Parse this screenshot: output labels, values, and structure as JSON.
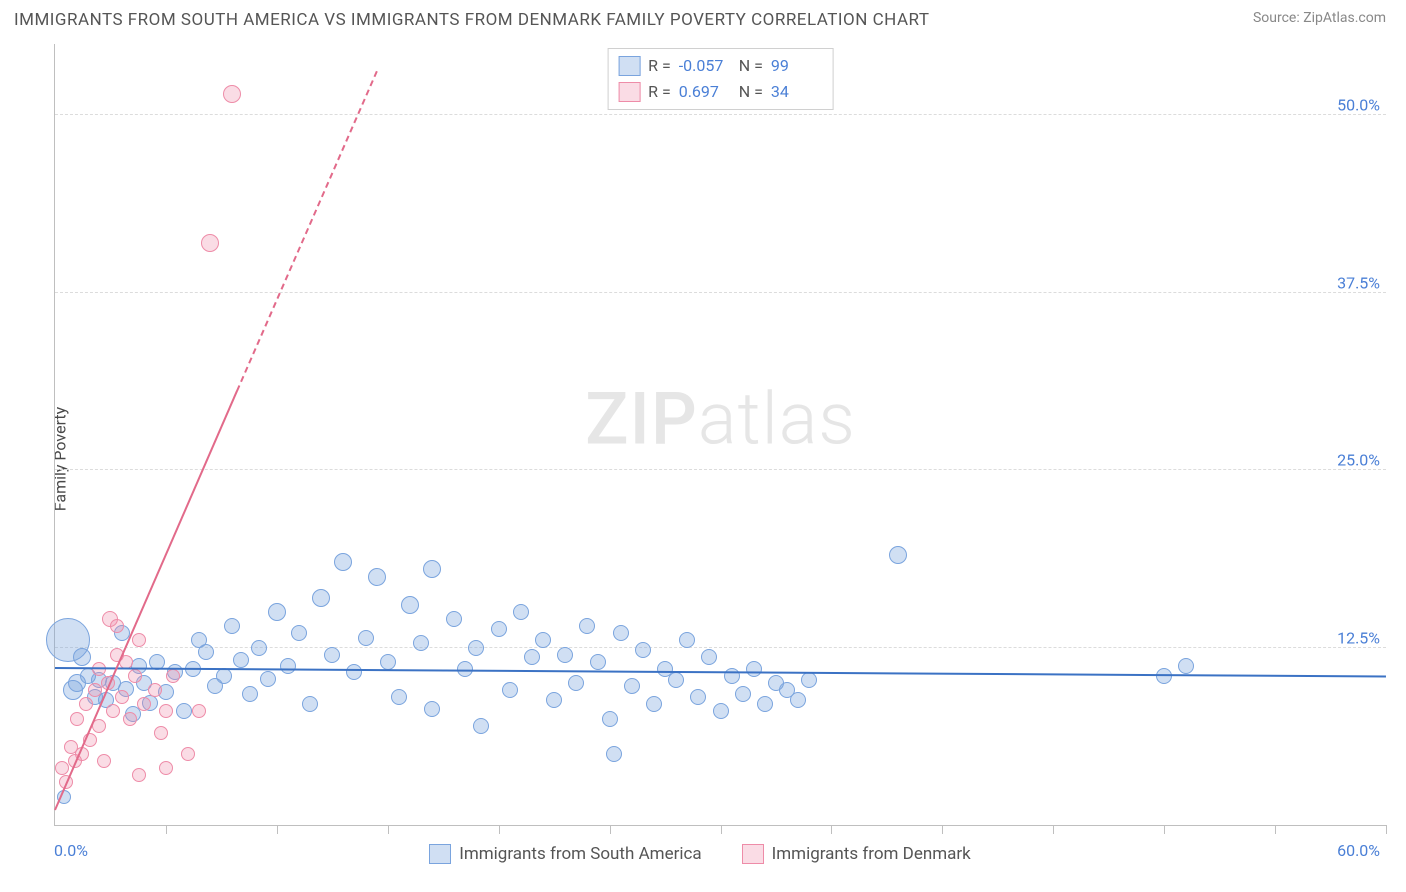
{
  "header": {
    "title": "IMMIGRANTS FROM SOUTH AMERICA VS IMMIGRANTS FROM DENMARK FAMILY POVERTY CORRELATION CHART",
    "source_label": "Source:",
    "source_name": "ZipAtlas.com"
  },
  "watermark": {
    "zip": "ZIP",
    "atlas": "atlas"
  },
  "chart": {
    "type": "scatter",
    "ylabel": "Family Poverty",
    "xlim": [
      0,
      60
    ],
    "ylim": [
      0,
      55
    ],
    "x_axis_labels": {
      "min": "0.0%",
      "max": "60.0%"
    },
    "y_ticks": [
      {
        "v": 12.5,
        "label": "12.5%"
      },
      {
        "v": 25.0,
        "label": "25.0%"
      },
      {
        "v": 37.5,
        "label": "37.5%"
      },
      {
        "v": 50.0,
        "label": "50.0%"
      }
    ],
    "x_minor_ticks": [
      5,
      10,
      15,
      20,
      25,
      30,
      35,
      40,
      45,
      50,
      55,
      60
    ],
    "background_color": "#ffffff",
    "grid_color": "#dcdcdc",
    "axis_color": "#bfbfbf",
    "series": [
      {
        "name": "Immigrants from South America",
        "color_fill": "rgba(120,164,222,0.35)",
        "color_stroke": "#7aa4de",
        "trend_color": "#3b72c4",
        "trend": {
          "x1": 0,
          "y1": 11.0,
          "x2": 60,
          "y2": 10.4,
          "dashed": false
        },
        "R": "-0.057",
        "N": "99",
        "points": [
          [
            0.4,
            2.0,
            7
          ],
          [
            0.6,
            13.0,
            22
          ],
          [
            0.8,
            9.5,
            10
          ],
          [
            1.0,
            10.0,
            9
          ],
          [
            1.2,
            11.8,
            9
          ],
          [
            1.5,
            10.5,
            8
          ],
          [
            1.8,
            9.0,
            8
          ],
          [
            2.0,
            10.2,
            8
          ],
          [
            2.3,
            8.8,
            8
          ],
          [
            2.6,
            10.0,
            8
          ],
          [
            3.0,
            13.5,
            8
          ],
          [
            3.2,
            9.6,
            8
          ],
          [
            3.5,
            7.8,
            8
          ],
          [
            3.8,
            11.2,
            8
          ],
          [
            4.0,
            10.0,
            8
          ],
          [
            4.3,
            8.6,
            8
          ],
          [
            4.6,
            11.5,
            8
          ],
          [
            5.0,
            9.4,
            8
          ],
          [
            5.4,
            10.8,
            8
          ],
          [
            5.8,
            8.0,
            8
          ],
          [
            6.2,
            11.0,
            8
          ],
          [
            6.5,
            13.0,
            8
          ],
          [
            6.8,
            12.2,
            8
          ],
          [
            7.2,
            9.8,
            8
          ],
          [
            7.6,
            10.5,
            8
          ],
          [
            8.0,
            14.0,
            8
          ],
          [
            8.4,
            11.6,
            8
          ],
          [
            8.8,
            9.2,
            8
          ],
          [
            9.2,
            12.5,
            8
          ],
          [
            9.6,
            10.3,
            8
          ],
          [
            10.0,
            15.0,
            9
          ],
          [
            10.5,
            11.2,
            8
          ],
          [
            11.0,
            13.5,
            8
          ],
          [
            11.5,
            8.5,
            8
          ],
          [
            12.0,
            16.0,
            9
          ],
          [
            12.5,
            12.0,
            8
          ],
          [
            13.0,
            18.5,
            9
          ],
          [
            13.5,
            10.8,
            8
          ],
          [
            14.0,
            13.2,
            8
          ],
          [
            14.5,
            17.5,
            9
          ],
          [
            15.0,
            11.5,
            8
          ],
          [
            15.5,
            9.0,
            8
          ],
          [
            16.0,
            15.5,
            9
          ],
          [
            16.5,
            12.8,
            8
          ],
          [
            17.0,
            8.2,
            8
          ],
          [
            17.0,
            18.0,
            9
          ],
          [
            18.0,
            14.5,
            8
          ],
          [
            18.5,
            11.0,
            8
          ],
          [
            19.0,
            12.5,
            8
          ],
          [
            19.2,
            7.0,
            8
          ],
          [
            20.0,
            13.8,
            8
          ],
          [
            20.5,
            9.5,
            8
          ],
          [
            21.0,
            15.0,
            8
          ],
          [
            21.5,
            11.8,
            8
          ],
          [
            22.0,
            13.0,
            8
          ],
          [
            22.5,
            8.8,
            8
          ],
          [
            23.0,
            12.0,
            8
          ],
          [
            23.5,
            10.0,
            8
          ],
          [
            24.0,
            14.0,
            8
          ],
          [
            24.5,
            11.5,
            8
          ],
          [
            25.0,
            7.5,
            8
          ],
          [
            25.2,
            5.0,
            8
          ],
          [
            25.5,
            13.5,
            8
          ],
          [
            26.0,
            9.8,
            8
          ],
          [
            26.5,
            12.3,
            8
          ],
          [
            27.0,
            8.5,
            8
          ],
          [
            27.5,
            11.0,
            8
          ],
          [
            28.0,
            10.2,
            8
          ],
          [
            28.5,
            13.0,
            8
          ],
          [
            29.0,
            9.0,
            8
          ],
          [
            29.5,
            11.8,
            8
          ],
          [
            30.0,
            8.0,
            8
          ],
          [
            30.5,
            10.5,
            8
          ],
          [
            31.0,
            9.2,
            8
          ],
          [
            31.5,
            11.0,
            8
          ],
          [
            32.0,
            8.5,
            8
          ],
          [
            32.5,
            10.0,
            8
          ],
          [
            33.0,
            9.5,
            8
          ],
          [
            33.5,
            8.8,
            8
          ],
          [
            34.0,
            10.2,
            8
          ],
          [
            38.0,
            19.0,
            9
          ],
          [
            50.0,
            10.5,
            8
          ],
          [
            51.0,
            11.2,
            8
          ]
        ]
      },
      {
        "name": "Immigrants from Denmark",
        "color_fill": "rgba(238,140,168,0.30)",
        "color_stroke": "#ee8ca8",
        "trend_color": "#e26a8a",
        "trend": {
          "x1": 0,
          "y1": 1.0,
          "x2": 8.2,
          "y2": 30.5,
          "dashed_ext": {
            "x2": 14.5,
            "y2": 53.0
          }
        },
        "R": "0.697",
        "N": "34",
        "points": [
          [
            0.3,
            4.0,
            7
          ],
          [
            0.5,
            3.0,
            7
          ],
          [
            0.7,
            5.5,
            7
          ],
          [
            0.9,
            4.5,
            7
          ],
          [
            1.0,
            7.5,
            7
          ],
          [
            1.2,
            5.0,
            7
          ],
          [
            1.4,
            8.5,
            7
          ],
          [
            1.6,
            6.0,
            7
          ],
          [
            1.8,
            9.5,
            7
          ],
          [
            2.0,
            7.0,
            7
          ],
          [
            2.0,
            11.0,
            7
          ],
          [
            2.2,
            4.5,
            7
          ],
          [
            2.4,
            10.0,
            7
          ],
          [
            2.5,
            14.5,
            8
          ],
          [
            2.6,
            8.0,
            7
          ],
          [
            2.8,
            12.0,
            7
          ],
          [
            2.8,
            14.0,
            7
          ],
          [
            3.0,
            9.0,
            7
          ],
          [
            3.2,
            11.5,
            7
          ],
          [
            3.4,
            7.5,
            7
          ],
          [
            3.6,
            10.5,
            7
          ],
          [
            3.8,
            3.5,
            7
          ],
          [
            3.8,
            13.0,
            7
          ],
          [
            4.0,
            8.5,
            7
          ],
          [
            4.5,
            9.5,
            7
          ],
          [
            4.8,
            6.5,
            7
          ],
          [
            5.0,
            4.0,
            7
          ],
          [
            5.0,
            8.0,
            7
          ],
          [
            5.3,
            10.5,
            7
          ],
          [
            6.0,
            5.0,
            7
          ],
          [
            6.5,
            8.0,
            7
          ],
          [
            7.0,
            41.0,
            9
          ],
          [
            8.0,
            51.5,
            9
          ]
        ]
      }
    ],
    "stat_labels": {
      "R": "R =",
      "N": "N ="
    }
  },
  "legend": {
    "series_a": "Immigrants from South America",
    "series_b": "Immigrants from Denmark"
  }
}
